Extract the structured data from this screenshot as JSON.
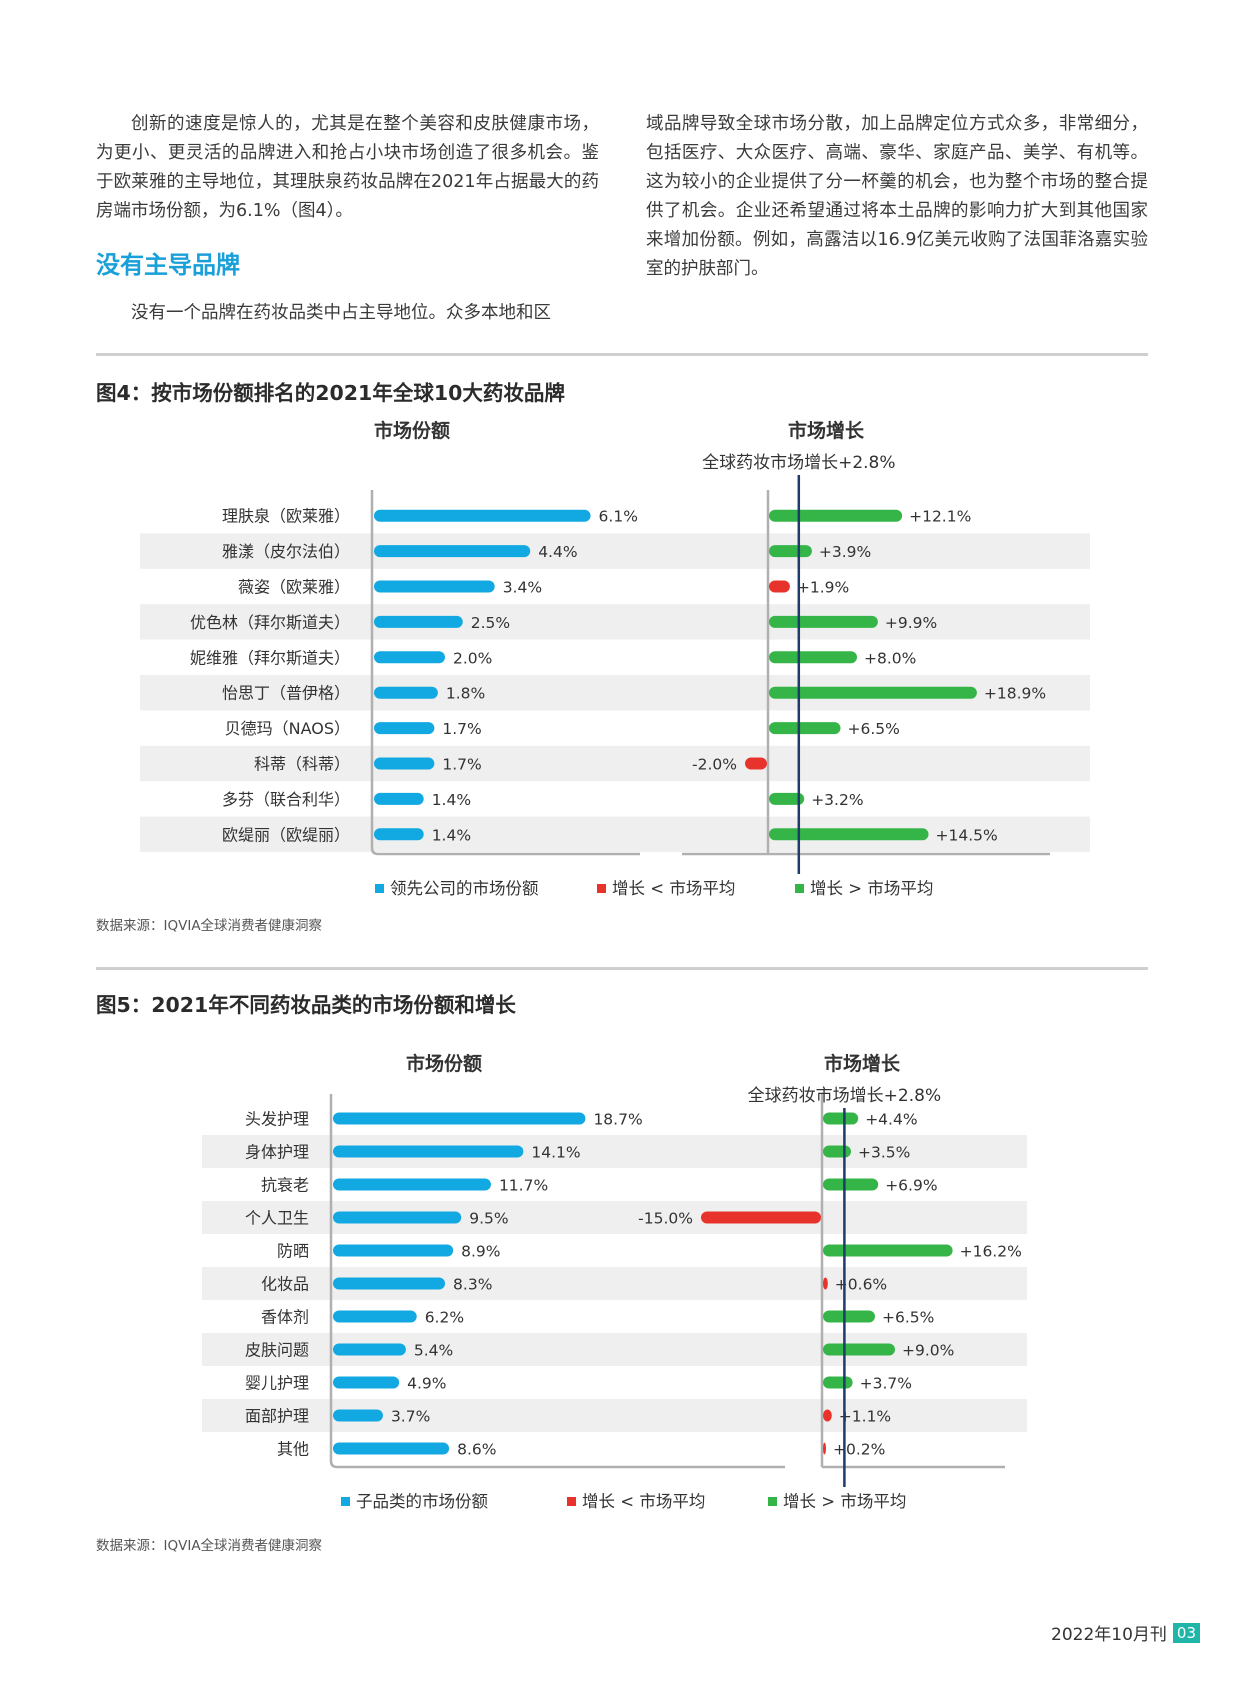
{
  "article": {
    "left_para1": "创新的速度是惊人的，尤其是在整个美容和皮肤健康市场，为更小、更灵活的品牌进入和抢占小块市场创造了很多机会。鉴于欧莱雅的主导地位，其理肤泉药妆品牌在2021年占据最大的药房端市场份额，为6.1%（图4）。",
    "heading": "没有主导品牌",
    "left_para2": "没有一个品牌在药妆品类中占主导地位。众多本地和区",
    "right_para": "域品牌导致全球市场分散，加上品牌定位方式众多，非常细分，包括医疗、大众医疗、高端、豪华、家庭产品、美学、有机等。这为较小的企业提供了分一杯羹的机会，也为整个市场的整合提供了机会。企业还希望通过将本土品牌的影响力扩大到其他国家来增加份额。例如，高露洁以16.9亿美元收购了法国菲洛嘉实验室的护肤部门。"
  },
  "fig4": {
    "title": "图4：按市场份额排名的2021年全球10大药妆品牌",
    "share_header": "市场份额",
    "growth_header": "市场增长",
    "avg_label": "全球药妆市场增长+2.8%",
    "legend": [
      "领先公司的市场份额",
      "增长 < 市场平均",
      "增长 > 市场平均"
    ],
    "source": "数据来源：IQVIA全球消费者健康洞察"
  },
  "fig5": {
    "title": "图5：2021年不同药妆品类的市场份额和增长",
    "share_header": "市场份额",
    "growth_header": "市场增长",
    "avg_label": "全球药妆市场增长+2.8%",
    "legend": [
      "子品类的市场份额",
      "增长 < 市场平均",
      "增长 > 市场平均"
    ],
    "source": "数据来源：IQVIA全球消费者健康洞察"
  },
  "footer": {
    "issue": "2022年10月刊",
    "page": "03"
  },
  "colors": {
    "share": "#12a9e2",
    "above": "#35b548",
    "below": "#e8332c",
    "avg_line": "#1d3b6b",
    "band": "#efefef",
    "heading": "#1aa0d8"
  },
  "chart_data": [
    {
      "type": "bar",
      "title": "图4：按市场份额排名的2021年全球10大药妆品牌",
      "market_average_growth": 2.8,
      "categories": [
        "理肤泉（欧莱雅）",
        "雅漾（皮尔法伯）",
        "薇姿（欧莱雅）",
        "优色林（拜尔斯道夫）",
        "妮维雅（拜尔斯道夫）",
        "怡思丁（普伊格）",
        "贝德玛（NAOS）",
        "科蒂（科蒂）",
        "多芬（联合利华）",
        "欧缇丽（欧缇丽）"
      ],
      "series": [
        {
          "name": "市场份额",
          "values": [
            6.1,
            4.4,
            3.4,
            2.5,
            2.0,
            1.8,
            1.7,
            1.7,
            1.4,
            1.4
          ],
          "labels": [
            "6.1%",
            "4.4%",
            "3.4%",
            "2.5%",
            "2.0%",
            "1.8%",
            "1.7%",
            "1.7%",
            "1.4%",
            "1.4%"
          ]
        },
        {
          "name": "市场增长",
          "values": [
            12.1,
            3.9,
            1.9,
            9.9,
            8.0,
            18.9,
            6.5,
            -2.0,
            3.2,
            14.5
          ],
          "labels": [
            "+12.1%",
            "+3.9%",
            "+1.9%",
            "+9.9%",
            "+8.0%",
            "+18.9%",
            "+6.5%",
            "-2.0%",
            "+3.2%",
            "+14.5%"
          ]
        }
      ]
    },
    {
      "type": "bar",
      "title": "图5：2021年不同药妆品类的市场份额和增长",
      "market_average_growth": 2.8,
      "categories": [
        "头发护理",
        "身体护理",
        "抗衰老",
        "个人卫生",
        "防晒",
        "化妆品",
        "香体剂",
        "皮肤问题",
        "婴儿护理",
        "面部护理",
        "其他"
      ],
      "series": [
        {
          "name": "市场份额",
          "values": [
            18.7,
            14.1,
            11.7,
            9.5,
            8.9,
            8.3,
            6.2,
            5.4,
            4.9,
            3.7,
            8.6
          ],
          "labels": [
            "18.7%",
            "14.1%",
            "11.7%",
            "9.5%",
            "8.9%",
            "8.3%",
            "6.2%",
            "5.4%",
            "4.9%",
            "3.7%",
            "8.6%"
          ]
        },
        {
          "name": "市场增长",
          "values": [
            4.4,
            3.5,
            6.9,
            -15.0,
            16.2,
            0.6,
            6.5,
            9.0,
            3.7,
            1.1,
            0.2
          ],
          "labels": [
            "+4.4%",
            "+3.5%",
            "+6.9%",
            "-15.0%",
            "+16.2%",
            "+0.6%",
            "+6.5%",
            "+9.0%",
            "+3.7%",
            "+1.1%",
            "+0.2%"
          ]
        }
      ]
    }
  ]
}
